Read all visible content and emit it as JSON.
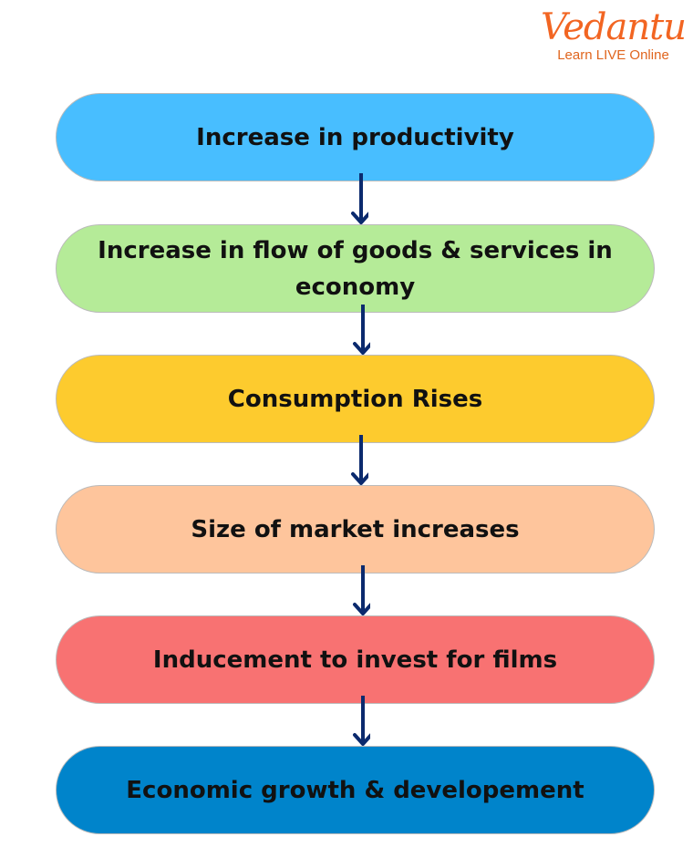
{
  "logo": {
    "brand": "Vedantu",
    "tagline": "Learn LIVE Online",
    "color": "#F26522"
  },
  "steps": [
    {
      "label": "Increase in productivity",
      "color": "#48BEFF"
    },
    {
      "label": "Increase in flow of goods & services in economy",
      "color": "#B5EB98"
    },
    {
      "label": "Consumption Rises",
      "color": "#FDCB2E"
    },
    {
      "label": "Size of market increases",
      "color": "#FEC59C"
    },
    {
      "label": "Inducement to invest for films",
      "color": "#F87272"
    },
    {
      "label": "Economic growth & developement",
      "color": "#0084CB"
    }
  ],
  "arrow_color": "#0B2A6E"
}
